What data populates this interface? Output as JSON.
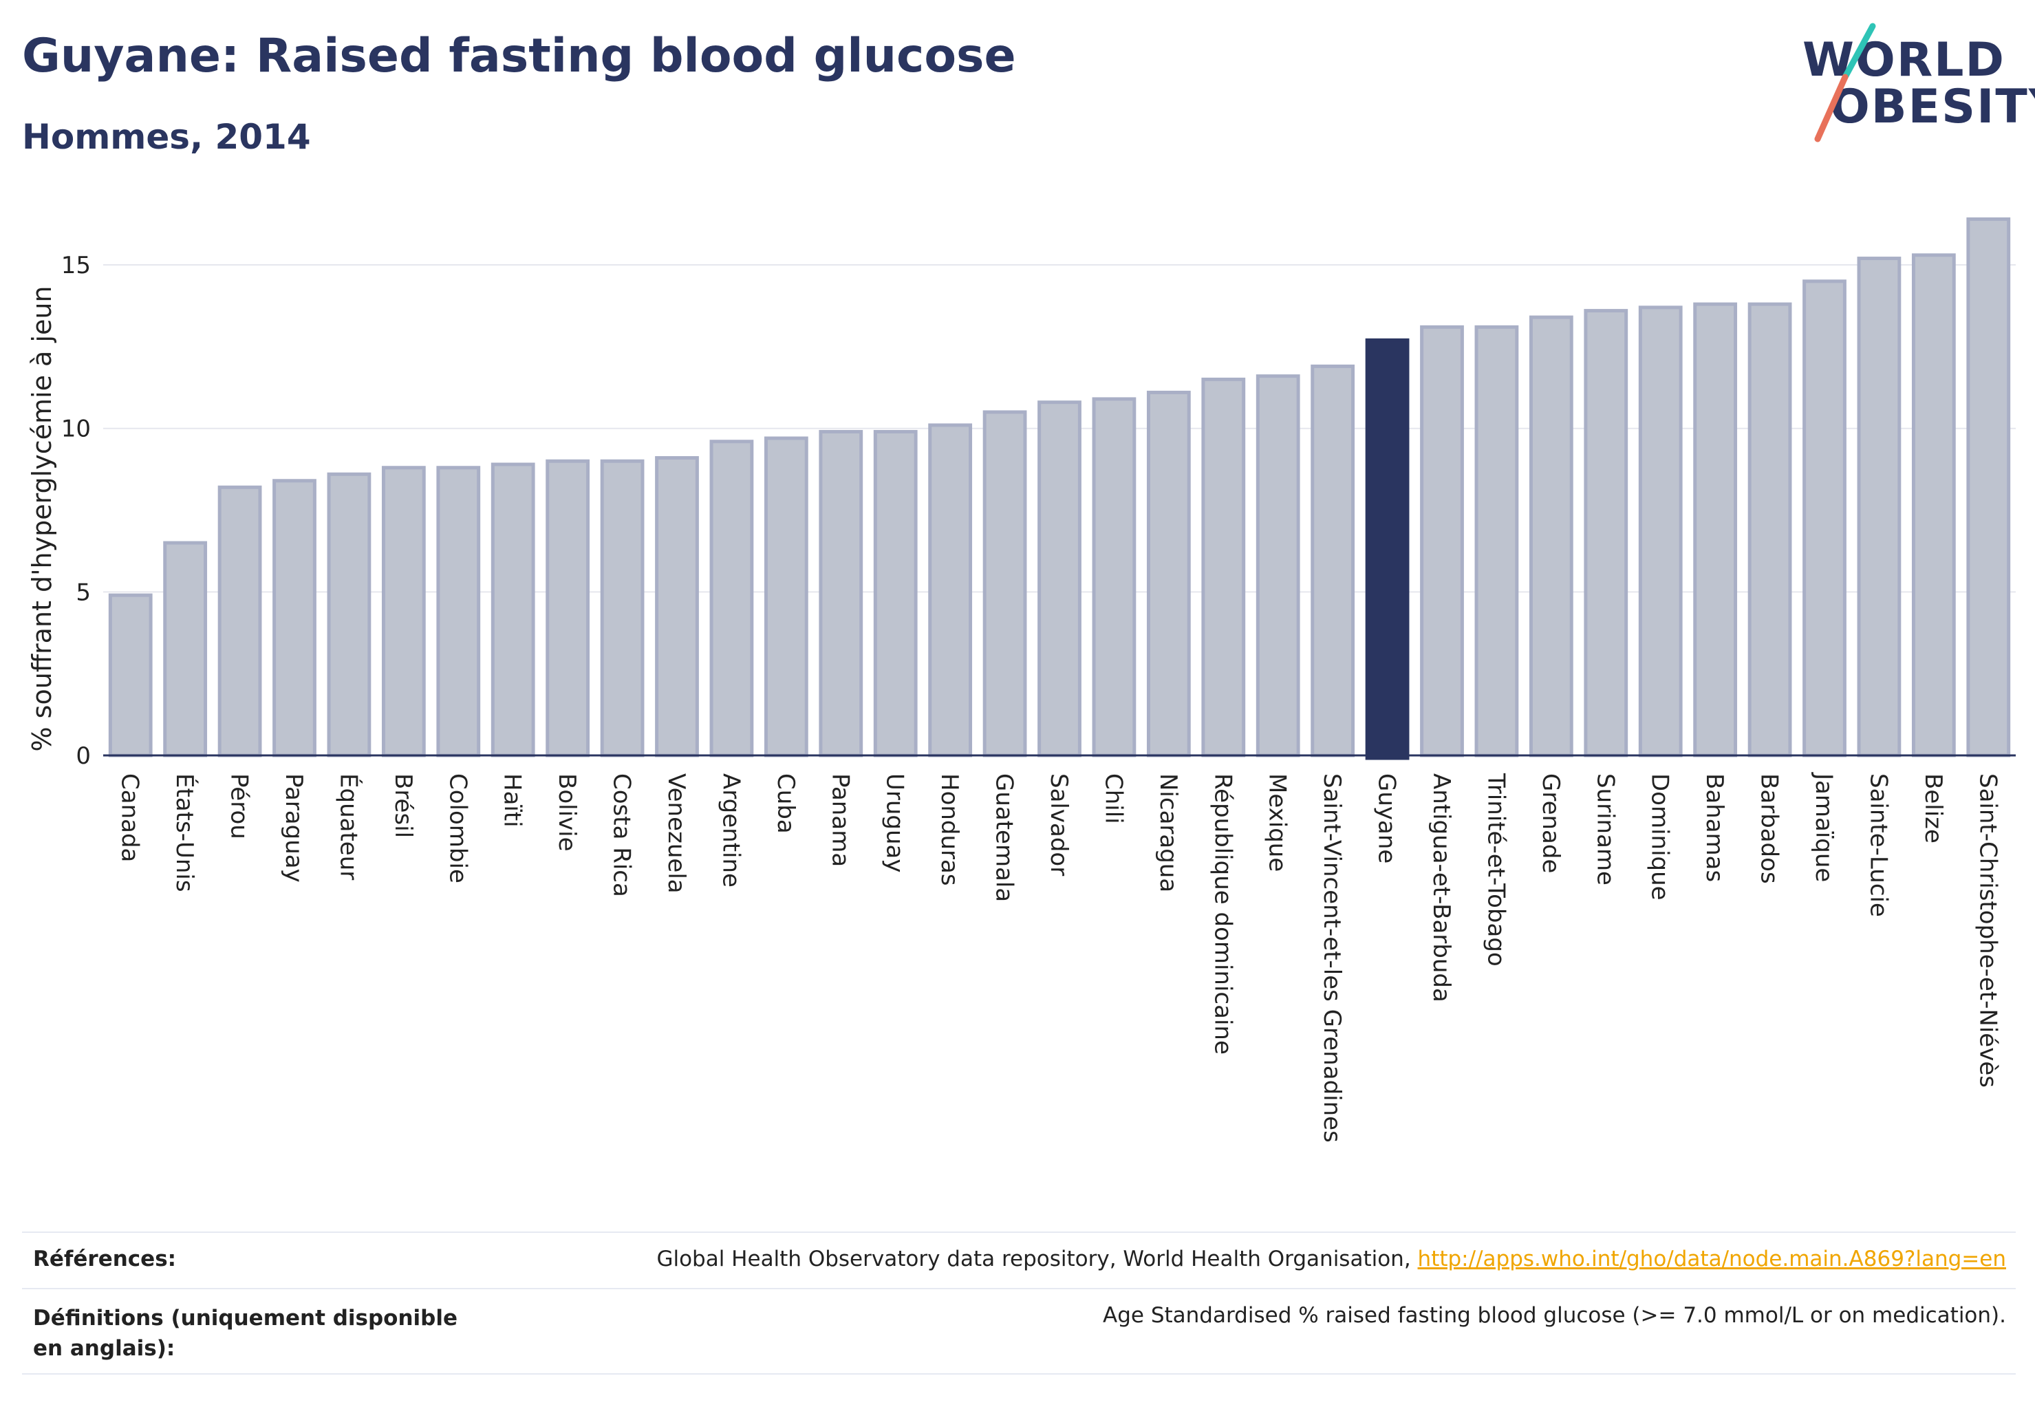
{
  "header": {
    "title": "Guyane: Raised fasting blood glucose",
    "subtitle": "Hommes, 2014"
  },
  "logo": {
    "line1": "WORLD",
    "line2": "OBESITY"
  },
  "colors": {
    "highlight": "#2a3560",
    "bar_fill": "#bec3cf",
    "bar_edge": "#a9afc6",
    "grid": "#e6e7ee",
    "axis": "#2a3560",
    "link": "#f0a500",
    "logo_accent_teal": "#2ec4b6",
    "logo_accent_coral": "#e8715a"
  },
  "chart_data": {
    "type": "bar",
    "title": "Guyane: Raised fasting blood glucose",
    "subtitle": "Hommes, 2014",
    "xlabel": "",
    "ylabel": "% souffrant d'hyperglycémie à jeun",
    "ylim": [
      0,
      17
    ],
    "yticks": [
      0,
      5,
      10,
      15
    ],
    "grid": true,
    "highlight": "Guyane",
    "categories": [
      "Canada",
      "États-Unis",
      "Pérou",
      "Paraguay",
      "Équateur",
      "Brésil",
      "Colombie",
      "Haïti",
      "Bolivie",
      "Costa Rica",
      "Venezuela",
      "Argentine",
      "Cuba",
      "Panama",
      "Uruguay",
      "Honduras",
      "Guatemala",
      "Salvador",
      "Chili",
      "Nicaragua",
      "République dominicaine",
      "Mexique",
      "Saint-Vincent-et-les Grenadines",
      "Guyane",
      "Antigua-et-Barbuda",
      "Trinité-et-Tobago",
      "Grenade",
      "Suriname",
      "Dominique",
      "Bahamas",
      "Barbados",
      "Jamaïque",
      "Sainte-Lucie",
      "Belize",
      "Saint-Christophe-et-Niévès"
    ],
    "values": [
      4.9,
      6.5,
      8.2,
      8.4,
      8.6,
      8.8,
      8.8,
      8.9,
      9.0,
      9.0,
      9.1,
      9.6,
      9.7,
      9.9,
      9.9,
      10.1,
      10.5,
      10.8,
      10.9,
      11.1,
      11.5,
      11.6,
      11.9,
      12.7,
      13.1,
      13.1,
      13.4,
      13.6,
      13.7,
      13.8,
      13.8,
      14.5,
      15.2,
      15.3,
      16.4
    ]
  },
  "footer": {
    "references_label": "Références:",
    "references_text": "Global Health Observatory data repository, World Health Organisation, ",
    "references_link": "http://apps.who.int/gho/data/node.main.A869?lang=en",
    "definitions_label": "Définitions (uniquement disponible en anglais):",
    "definitions_text": "Age Standardised % raised fasting blood glucose (>= 7.0 mmol/L or on medication)."
  }
}
